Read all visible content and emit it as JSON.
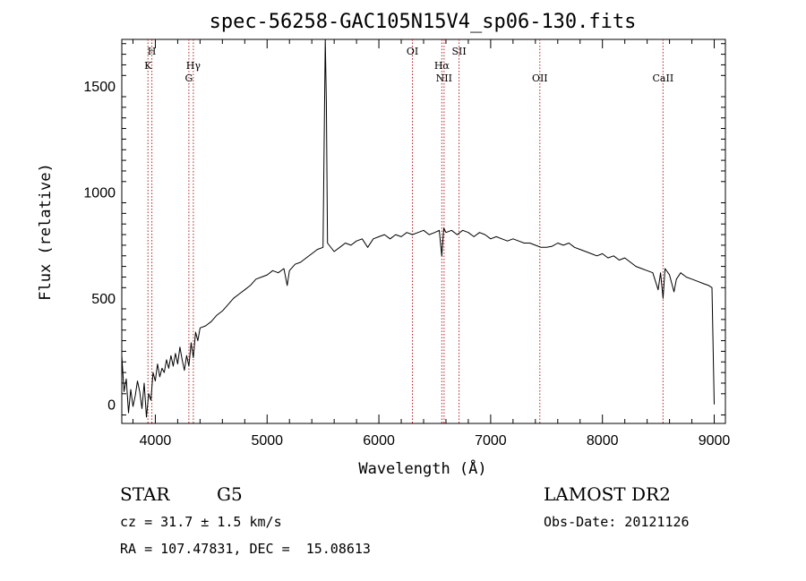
{
  "chart_data": {
    "type": "line",
    "title": "spec-56258-GAC105N15V4_sp06-130.fits",
    "xlabel": "Wavelength (Å)",
    "ylabel": "Flux (relative)",
    "xlim": [
      3700,
      9100
    ],
    "ylim": [
      -90,
      1720
    ],
    "x_ticks": [
      4000,
      5000,
      6000,
      7000,
      8000,
      9000
    ],
    "y_ticks": [
      0,
      500,
      1000,
      1500
    ],
    "tick_labels_x": [
      "4000",
      "5000",
      "6000",
      "7000",
      "8000",
      "9000"
    ],
    "tick_labels_y": [
      "0",
      "500",
      "1000",
      "1500"
    ],
    "grid": false,
    "line_color": "#000000",
    "marker_color": "#b22222",
    "series": [
      {
        "points": [
          [
            3700,
            230
          ],
          [
            3720,
            60
          ],
          [
            3740,
            120
          ],
          [
            3760,
            -40
          ],
          [
            3780,
            70
          ],
          [
            3800,
            -10
          ],
          [
            3820,
            40
          ],
          [
            3840,
            110
          ],
          [
            3860,
            60
          ],
          [
            3880,
            -20
          ],
          [
            3900,
            100
          ],
          [
            3920,
            -60
          ],
          [
            3940,
            50
          ],
          [
            3960,
            20
          ],
          [
            3980,
            150
          ],
          [
            4000,
            110
          ],
          [
            4020,
            190
          ],
          [
            4040,
            130
          ],
          [
            4060,
            170
          ],
          [
            4080,
            150
          ],
          [
            4100,
            210
          ],
          [
            4120,
            170
          ],
          [
            4140,
            230
          ],
          [
            4160,
            180
          ],
          [
            4180,
            240
          ],
          [
            4200,
            190
          ],
          [
            4220,
            270
          ],
          [
            4240,
            210
          ],
          [
            4260,
            160
          ],
          [
            4280,
            230
          ],
          [
            4300,
            180
          ],
          [
            4320,
            290
          ],
          [
            4340,
            220
          ],
          [
            4360,
            340
          ],
          [
            4380,
            300
          ],
          [
            4400,
            360
          ],
          [
            4450,
            370
          ],
          [
            4500,
            390
          ],
          [
            4550,
            420
          ],
          [
            4600,
            440
          ],
          [
            4650,
            470
          ],
          [
            4700,
            500
          ],
          [
            4750,
            520
          ],
          [
            4800,
            540
          ],
          [
            4850,
            560
          ],
          [
            4900,
            590
          ],
          [
            4950,
            600
          ],
          [
            5000,
            610
          ],
          [
            5050,
            630
          ],
          [
            5100,
            620
          ],
          [
            5150,
            640
          ],
          [
            5180,
            560
          ],
          [
            5200,
            630
          ],
          [
            5250,
            660
          ],
          [
            5300,
            670
          ],
          [
            5350,
            690
          ],
          [
            5400,
            710
          ],
          [
            5450,
            730
          ],
          [
            5500,
            740
          ],
          [
            5520,
            1720
          ],
          [
            5530,
            1430
          ],
          [
            5540,
            760
          ],
          [
            5600,
            720
          ],
          [
            5650,
            740
          ],
          [
            5700,
            760
          ],
          [
            5750,
            750
          ],
          [
            5800,
            770
          ],
          [
            5850,
            780
          ],
          [
            5900,
            740
          ],
          [
            5950,
            780
          ],
          [
            6000,
            790
          ],
          [
            6050,
            800
          ],
          [
            6100,
            780
          ],
          [
            6150,
            800
          ],
          [
            6200,
            790
          ],
          [
            6250,
            810
          ],
          [
            6300,
            800
          ],
          [
            6350,
            810
          ],
          [
            6400,
            820
          ],
          [
            6450,
            800
          ],
          [
            6500,
            810
          ],
          [
            6540,
            820
          ],
          [
            6563,
            700
          ],
          [
            6580,
            830
          ],
          [
            6600,
            810
          ],
          [
            6650,
            820
          ],
          [
            6700,
            800
          ],
          [
            6750,
            820
          ],
          [
            6800,
            810
          ],
          [
            6850,
            790
          ],
          [
            6900,
            810
          ],
          [
            6950,
            800
          ],
          [
            7000,
            780
          ],
          [
            7050,
            790
          ],
          [
            7100,
            780
          ],
          [
            7150,
            770
          ],
          [
            7200,
            780
          ],
          [
            7250,
            770
          ],
          [
            7300,
            760
          ],
          [
            7350,
            760
          ],
          [
            7400,
            750
          ],
          [
            7450,
            740
          ],
          [
            7500,
            740
          ],
          [
            7550,
            745
          ],
          [
            7600,
            760
          ],
          [
            7650,
            750
          ],
          [
            7700,
            760
          ],
          [
            7750,
            740
          ],
          [
            7800,
            730
          ],
          [
            7850,
            720
          ],
          [
            7900,
            710
          ],
          [
            7950,
            700
          ],
          [
            8000,
            710
          ],
          [
            8050,
            690
          ],
          [
            8100,
            700
          ],
          [
            8150,
            680
          ],
          [
            8200,
            690
          ],
          [
            8250,
            670
          ],
          [
            8300,
            650
          ],
          [
            8350,
            640
          ],
          [
            8400,
            630
          ],
          [
            8450,
            620
          ],
          [
            8498,
            540
          ],
          [
            8520,
            620
          ],
          [
            8542,
            500
          ],
          [
            8560,
            640
          ],
          [
            8600,
            610
          ],
          [
            8640,
            530
          ],
          [
            8662,
            590
          ],
          [
            8700,
            620
          ],
          [
            8750,
            600
          ],
          [
            8800,
            590
          ],
          [
            8850,
            580
          ],
          [
            8900,
            570
          ],
          [
            8950,
            560
          ],
          [
            8980,
            550
          ],
          [
            9000,
            0
          ]
        ]
      }
    ],
    "line_markers": [
      {
        "x": 3934,
        "label": "K"
      },
      {
        "x": 3969,
        "label": "H"
      },
      {
        "x": 4300,
        "label": "G"
      },
      {
        "x": 4340,
        "label": "Hγ"
      },
      {
        "x": 6300,
        "label": "OI"
      },
      {
        "x": 6563,
        "label": "Hα"
      },
      {
        "x": 6583,
        "label": "NII"
      },
      {
        "x": 6717,
        "label": "SII"
      },
      {
        "x": 7440,
        "label": "OII"
      },
      {
        "x": 8542,
        "label": "CaII"
      }
    ]
  },
  "info": {
    "object_class": "STAR",
    "subclass": "G5",
    "survey": "LAMOST DR2",
    "redshift": "cz = 31.7 ± 1.5 km/s",
    "obs_date": "Obs-Date: 20121126",
    "coords": "RA = 107.47831, DEC =  15.08613"
  }
}
